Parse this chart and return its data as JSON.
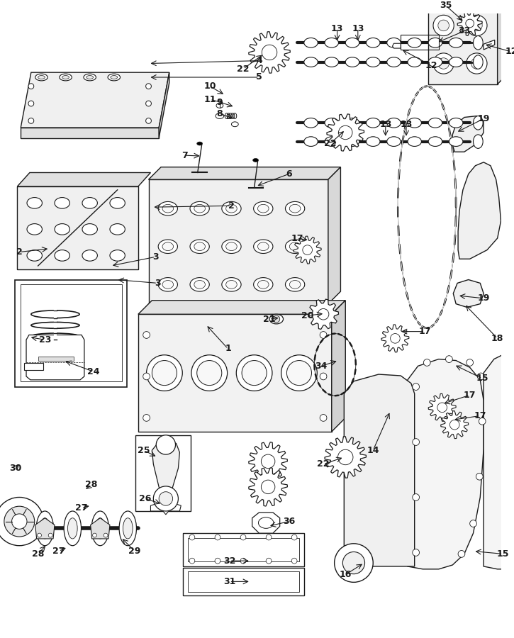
{
  "bg_color": "#ffffff",
  "lc": "#1a1a1a",
  "fig_width": 7.25,
  "fig_height": 9.0,
  "dpi": 100
}
